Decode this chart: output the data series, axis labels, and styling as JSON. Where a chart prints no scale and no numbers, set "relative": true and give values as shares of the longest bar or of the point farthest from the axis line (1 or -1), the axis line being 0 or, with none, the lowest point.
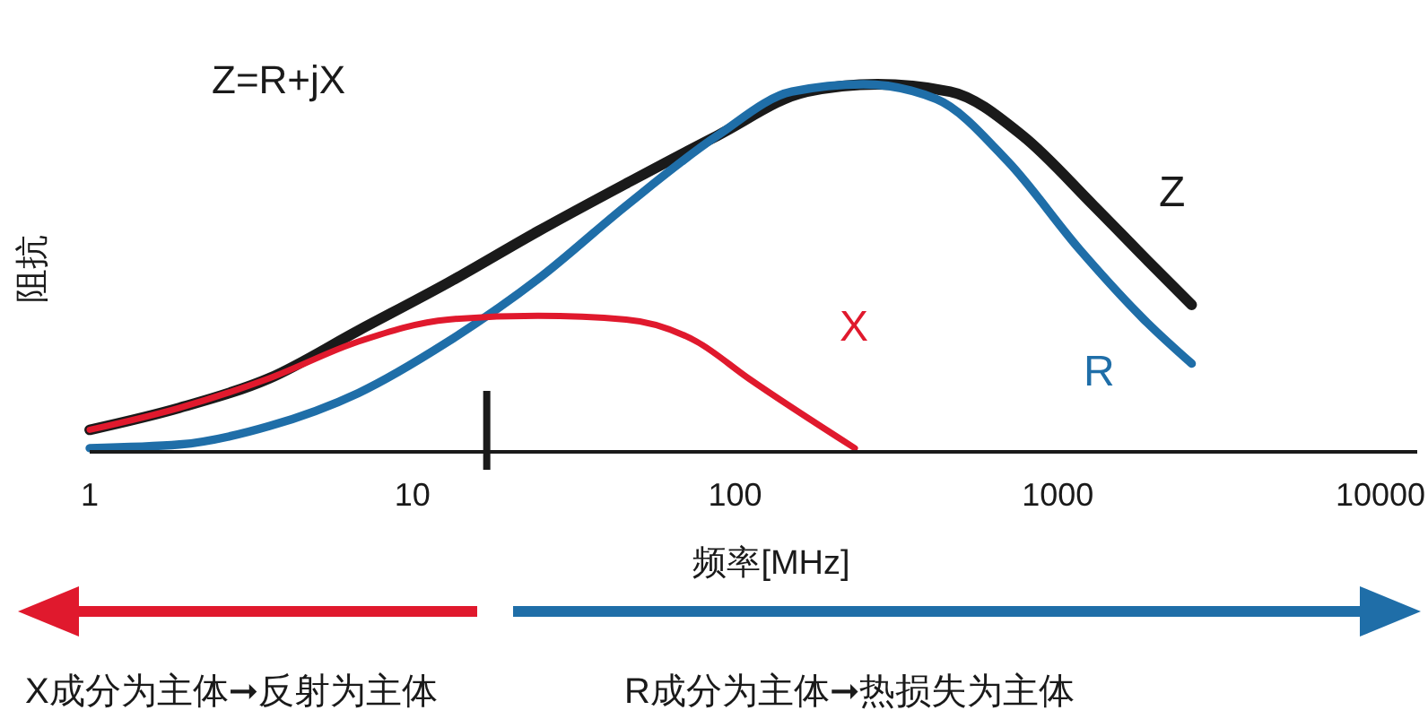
{
  "chart_data": {
    "type": "line",
    "relative": true,
    "xlabel": "频率[MHz]",
    "ylabel": "阻抗",
    "log": "x",
    "xlim": [
      1,
      13000
    ],
    "xticks": [
      1,
      10,
      100,
      1000,
      10000
    ],
    "legend": false,
    "grid": false,
    "marker": "none",
    "line_style": "solid",
    "series": [
      {
        "name": "Z",
        "color": "#1a1a1a",
        "x": [
          1,
          1.9,
          3.6,
          6.8,
          12.9,
          24.5,
          46,
          88,
          167,
          276,
          464,
          778,
          1292,
          1900,
          2600
        ],
        "values": [
          0.06,
          0.12,
          0.2,
          0.33,
          0.46,
          0.6,
          0.73,
          0.86,
          0.98,
          1.0,
          0.98,
          0.86,
          0.67,
          0.52,
          0.4
        ]
      },
      {
        "name": "R",
        "color": "#1f6ea8",
        "x": [
          1,
          1.9,
          3.6,
          6.8,
          12.9,
          24.5,
          46,
          88,
          150,
          250,
          420,
          700,
          1170,
          1900,
          2600
        ],
        "values": [
          0.01,
          0.02,
          0.07,
          0.16,
          0.3,
          0.47,
          0.67,
          0.86,
          0.98,
          1.0,
          0.96,
          0.79,
          0.55,
          0.35,
          0.24
        ]
      },
      {
        "name": "X",
        "color": "#e0192d",
        "x": [
          1,
          1.9,
          3.6,
          6.8,
          12.9,
          24.5,
          46,
          76,
          110,
          235
        ],
        "values": [
          0.06,
          0.12,
          0.2,
          0.3,
          0.36,
          0.37,
          0.36,
          0.3,
          0.2,
          0.01
        ]
      }
    ],
    "ref_lines": [
      {
        "axis": "x",
        "value": 17,
        "color": "#1a1a1a"
      }
    ],
    "annotations": [
      "Z=R+jX",
      "X成分为主体➞反射为主体",
      "R成分为主体➞热损失为主体"
    ]
  }
}
